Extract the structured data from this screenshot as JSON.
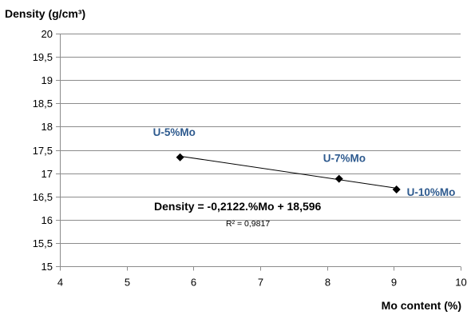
{
  "chart_data": {
    "type": "scatter",
    "title": "",
    "ylabel": "Density (g/cm³)",
    "xlabel": "Mo content (%)",
    "xlim": [
      4,
      10
    ],
    "ylim": [
      15,
      20
    ],
    "x_ticks": [
      4,
      5,
      6,
      7,
      8,
      9,
      10
    ],
    "y_ticks": [
      "15",
      "15,5",
      "16",
      "16,5",
      "17",
      "17,5",
      "18",
      "18,5",
      "19",
      "19,5",
      "20"
    ],
    "y_tick_values": [
      15,
      15.5,
      16,
      16.5,
      17,
      17.5,
      18,
      18.5,
      19,
      19.5,
      20
    ],
    "grid": "horizontal",
    "series": [
      {
        "points": [
          {
            "x": 5.8,
            "y": 17.34,
            "label": "U-5%Mo"
          },
          {
            "x": 8.18,
            "y": 16.88,
            "label": "U-7%Mo"
          },
          {
            "x": 9.04,
            "y": 16.65,
            "label": "U-10%Mo"
          }
        ],
        "marker": "diamond",
        "color": "#000000"
      }
    ],
    "trendline": {
      "type": "linear",
      "slope": -0.2122,
      "intercept": 18.596,
      "equation": "Density = -0,2122.%Mo + 18,596",
      "r2_label": "R² = 0,9817"
    },
    "colors": {
      "label": "#2e5a8e",
      "grid": "#8c8c8c",
      "axis": "#8c8c8c",
      "marker": "#000000"
    }
  }
}
